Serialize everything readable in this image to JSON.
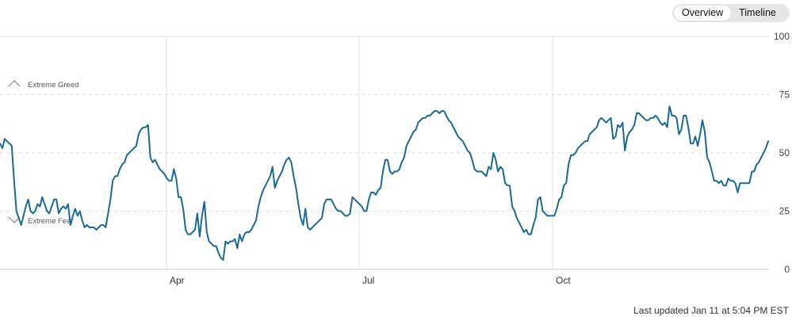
{
  "toggle": {
    "overview_label": "Overview",
    "timeline_label": "Timeline",
    "selected": "Overview"
  },
  "footer": {
    "last_updated": "Last updated Jan 11 at 5:04 PM EST"
  },
  "colors": {
    "line": "#1a6a96",
    "grid": "#e2e2e2",
    "dashed": "#dddddd",
    "axis": "#cccccc"
  },
  "chart_data": {
    "type": "line",
    "title": "",
    "xlabel": "",
    "ylabel": "",
    "ylim": [
      0,
      100
    ],
    "yticks": [
      0,
      25,
      50,
      75,
      100
    ],
    "x_tick_labels": [
      "Apr",
      "Jul",
      "Oct"
    ],
    "grid": true,
    "bands": [
      {
        "label": "Extreme Greed",
        "value": 75,
        "icon": "chevron-up-icon"
      },
      {
        "label": "Extreme Fear",
        "value": 25,
        "icon": "chevron-down-icon"
      }
    ],
    "series": [
      {
        "values": [
          54,
          52,
          56,
          55,
          54,
          53,
          38,
          25,
          22,
          19,
          23,
          27,
          30,
          25,
          24,
          25,
          28,
          27,
          31,
          28,
          25,
          24,
          27,
          30,
          30,
          24,
          26,
          27,
          26,
          28,
          19,
          23,
          26,
          23,
          25,
          21,
          18,
          19,
          18,
          18,
          18,
          17,
          18,
          19,
          19,
          18,
          24,
          30,
          38,
          40,
          40,
          43,
          45,
          46,
          49,
          50,
          51,
          52,
          53,
          58,
          60,
          61,
          61,
          62,
          48,
          46,
          47,
          45,
          43,
          42,
          41,
          39,
          38,
          38,
          43,
          39,
          31,
          31,
          26,
          17,
          15,
          15,
          16,
          17,
          24,
          14,
          23,
          29,
          16,
          12,
          11,
          10,
          10,
          7,
          5,
          4,
          12,
          11,
          12,
          12,
          13,
          9,
          15,
          12,
          15,
          16,
          16,
          17,
          19,
          21,
          27,
          31,
          34,
          36,
          38,
          40,
          44,
          35,
          38,
          40,
          42,
          45,
          47,
          48,
          46,
          40,
          35,
          28,
          22,
          19,
          26,
          18,
          17,
          18,
          19,
          20,
          21,
          22,
          28,
          30,
          30,
          30,
          28,
          26,
          25,
          25,
          24,
          23,
          23,
          24,
          31,
          30,
          29,
          28,
          27,
          25,
          25,
          30,
          33,
          33,
          32,
          34,
          35,
          42,
          47,
          47,
          42,
          41,
          42,
          42,
          43,
          46,
          48,
          53,
          55,
          57,
          59,
          60,
          63,
          64,
          65,
          65,
          66,
          66,
          67,
          68,
          68,
          67,
          68,
          68,
          66,
          64,
          63,
          61,
          59,
          57,
          56,
          55,
          53,
          51,
          50,
          47,
          43,
          42,
          42,
          42,
          41,
          40,
          44,
          43,
          50,
          47,
          42,
          44,
          43,
          37,
          36,
          36,
          27,
          25,
          22,
          20,
          18,
          16,
          17,
          15,
          15,
          19,
          22,
          30,
          31,
          25,
          24,
          23,
          23,
          23,
          23,
          26,
          30,
          31,
          36,
          37,
          45,
          49,
          49,
          50,
          52,
          53,
          54,
          55,
          55,
          58,
          59,
          60,
          61,
          64,
          65,
          64,
          63,
          64,
          65,
          56,
          57,
          62,
          61,
          63,
          51,
          57,
          59,
          60,
          62,
          67,
          67,
          66,
          65,
          64,
          64,
          65,
          65,
          66,
          65,
          63,
          62,
          63,
          61,
          70,
          66,
          66,
          65,
          58,
          60,
          66,
          66,
          61,
          54,
          54,
          57,
          53,
          58,
          64,
          59,
          48,
          46,
          42,
          38,
          38,
          37,
          38,
          36,
          36,
          39,
          38,
          38,
          37,
          33,
          37,
          37,
          37,
          37,
          37,
          42,
          42,
          45,
          46,
          48,
          50,
          52,
          55
        ]
      }
    ]
  }
}
